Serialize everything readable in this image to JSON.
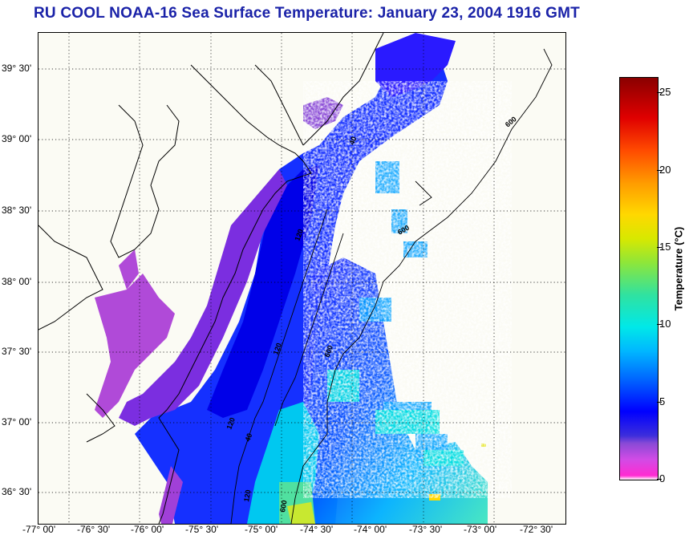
{
  "title": "RU COOL  NOAA-16  Sea Surface Temperature:  January 23, 2004 1916 GMT",
  "map": {
    "latitude_labels": [
      "39° 30'",
      "39° 00'",
      "38° 30'",
      "38° 00'",
      "37° 30'",
      "37° 00'",
      "36° 30'"
    ],
    "longitude_labels": [
      "-77° 00'",
      "-76° 30'",
      "-76° 00'",
      "-75° 30'",
      "-75° 00'",
      "-74° 30'",
      "-74° 00'",
      "-73° 30'",
      "-73° 00'",
      "-72° 30'"
    ],
    "contour_labels": [
      "600",
      "600",
      "600",
      "600",
      "120",
      "120",
      "120",
      "120",
      "40",
      "40"
    ],
    "grid": "dotted"
  },
  "colorbar": {
    "label": "Temperature (°C)",
    "ticks": [
      "25",
      "20",
      "15",
      "10",
      "5",
      "0"
    ],
    "tick_values": [
      25,
      20,
      15,
      10,
      5,
      0
    ],
    "range": [
      0,
      26
    ]
  },
  "colors": {
    "title": "#1a22a8",
    "cold": "#ff2bd2",
    "low": "#0000ff",
    "mid": "#00e8e8",
    "high": "#ffd800",
    "max": "#8a0000"
  }
}
